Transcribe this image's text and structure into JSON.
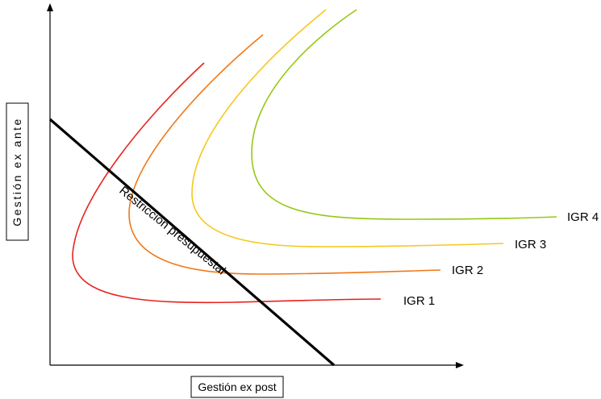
{
  "diagram": {
    "x_axis_label": "Gestión ex post",
    "y_axis_label": "Gestión ex ante",
    "budget_label": "Restricción presupuestal",
    "curves": [
      {
        "label": "IGR 1",
        "color": "#e8231e"
      },
      {
        "label": "IGR 2",
        "color": "#f07818"
      },
      {
        "label": "IGR 3",
        "color": "#f5c81e"
      },
      {
        "label": "IGR 4",
        "color": "#96c814"
      }
    ],
    "budget_line_color": "#000000",
    "axis_color": "#000000"
  }
}
